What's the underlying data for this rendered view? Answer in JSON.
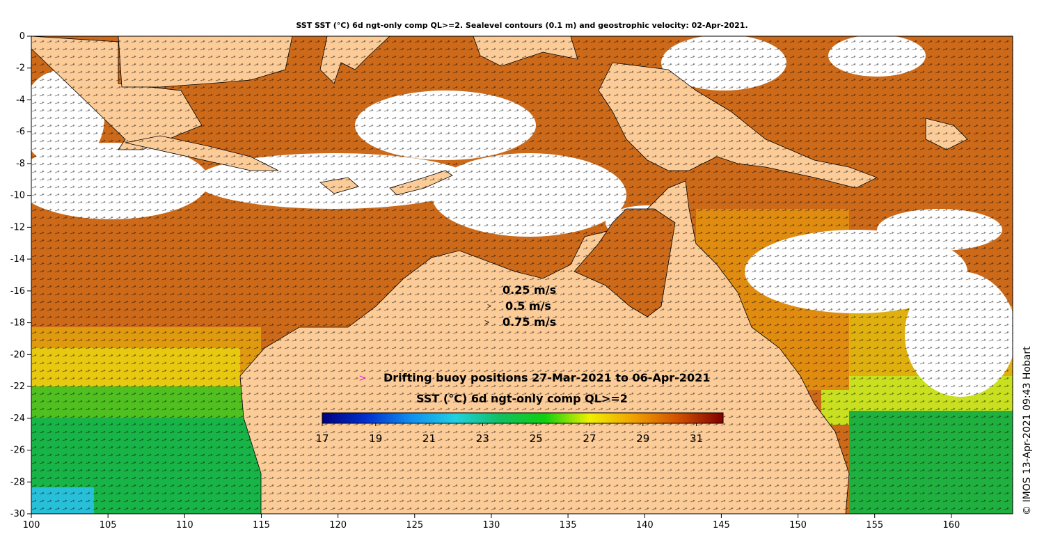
{
  "title": "SST SST (°C) 6d ngt-only comp QL>=2. Sealevel contours (0.1 m) and geostrophic velocity: 02-Apr-2021.",
  "credit": "© IMOS 13-Apr-2021 09:43 Hobart",
  "velocity_legend": {
    "entries": [
      {
        "label": "0.25 m/s"
      },
      {
        "label": "0.5 m/s"
      },
      {
        "label": "0.75 m/s"
      }
    ]
  },
  "buoy_legend": {
    "symbol": ">",
    "label": "Drifting buoy positions 27-Mar-2021 to 06-Apr-2021",
    "color": "#e020e0"
  },
  "colorbar": {
    "title": "SST (°C) 6d ngt-only comp QL>=2",
    "min": 17,
    "max": 32,
    "tick_labels": [
      "17",
      "19",
      "21",
      "23",
      "25",
      "27",
      "29",
      "31"
    ],
    "tick_values": [
      17,
      19,
      21,
      23,
      25,
      27,
      29,
      31
    ],
    "stops": [
      "#000080",
      "#0030d0",
      "#1090f0",
      "#20d0e0",
      "#10c060",
      "#10d010",
      "#f0f000",
      "#f0a000",
      "#d05000",
      "#800000"
    ]
  },
  "axes": {
    "x_range": [
      100,
      164
    ],
    "y_range": [
      -30,
      0
    ],
    "x_ticks": [
      "100",
      "105",
      "110",
      "115",
      "120",
      "125",
      "130",
      "135",
      "140",
      "145",
      "150",
      "155",
      "160"
    ],
    "x_tick_values": [
      100,
      105,
      110,
      115,
      120,
      125,
      130,
      135,
      140,
      145,
      150,
      155,
      160
    ],
    "y_ticks": [
      "0",
      "-2",
      "-4",
      "-6",
      "-8",
      "-10",
      "-12",
      "-14",
      "-16",
      "-18",
      "-20",
      "-22",
      "-24",
      "-26",
      "-28",
      "-30"
    ],
    "y_tick_values": [
      0,
      -2,
      -4,
      -6,
      -8,
      -10,
      -12,
      -14,
      -16,
      -18,
      -20,
      -22,
      -24,
      -26,
      -28,
      -30
    ]
  },
  "colors": {
    "land": "#fbcb98",
    "no_data": "#ffffff",
    "ocean_warm": "#d06a18"
  }
}
